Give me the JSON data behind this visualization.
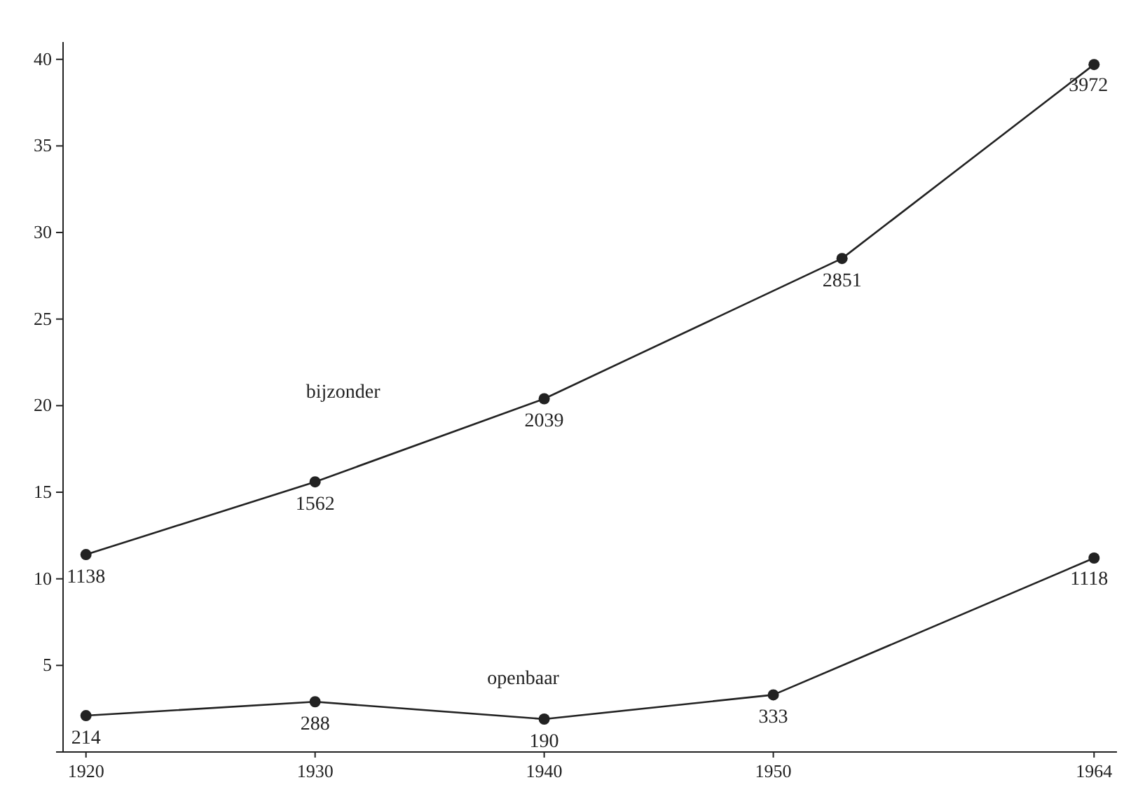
{
  "chart_data": {
    "type": "line",
    "xlim": [
      1919,
      1965
    ],
    "xticks": [
      1920,
      1930,
      1940,
      1950,
      1964
    ],
    "ylim": [
      0,
      41
    ],
    "yticks": [
      {
        "value": 0,
        "label": null
      },
      5,
      10,
      15,
      20,
      25,
      30,
      35,
      40
    ],
    "marker": "circle",
    "line_style": "solid",
    "grid": false,
    "series": [
      {
        "name": "bijzonder",
        "color": "#222222",
        "x": [
          1920,
          1930,
          1940,
          1953,
          1964
        ],
        "values": [
          11.4,
          15.6,
          20.4,
          28.5,
          39.7
        ]
      },
      {
        "name": "openbaar",
        "color": "#222222",
        "x": [
          1920,
          1930,
          1940,
          1950,
          1964
        ],
        "values": [
          2.1,
          2.9,
          1.9,
          3.3,
          11.2
        ]
      }
    ],
    "annotations": [
      {
        "text": "1138",
        "x": 1920,
        "y": 11.4
      },
      {
        "text": "1562",
        "x": 1930,
        "y": 15.6
      },
      {
        "text": "2039",
        "x": 1940,
        "y": 20.4
      },
      {
        "text": "2851",
        "x": 1953,
        "y": 28.5
      },
      {
        "text": "3972",
        "x": 1964,
        "y": 39.7
      },
      {
        "text": "214",
        "x": 1920,
        "y": 2.1
      },
      {
        "text": "288",
        "x": 1930,
        "y": 2.9
      },
      {
        "text": "190",
        "x": 1940,
        "y": 1.9
      },
      {
        "text": "333",
        "x": 1950,
        "y": 3.3
      },
      {
        "text": "1118",
        "x": 1964,
        "y": 11.2
      }
    ]
  }
}
